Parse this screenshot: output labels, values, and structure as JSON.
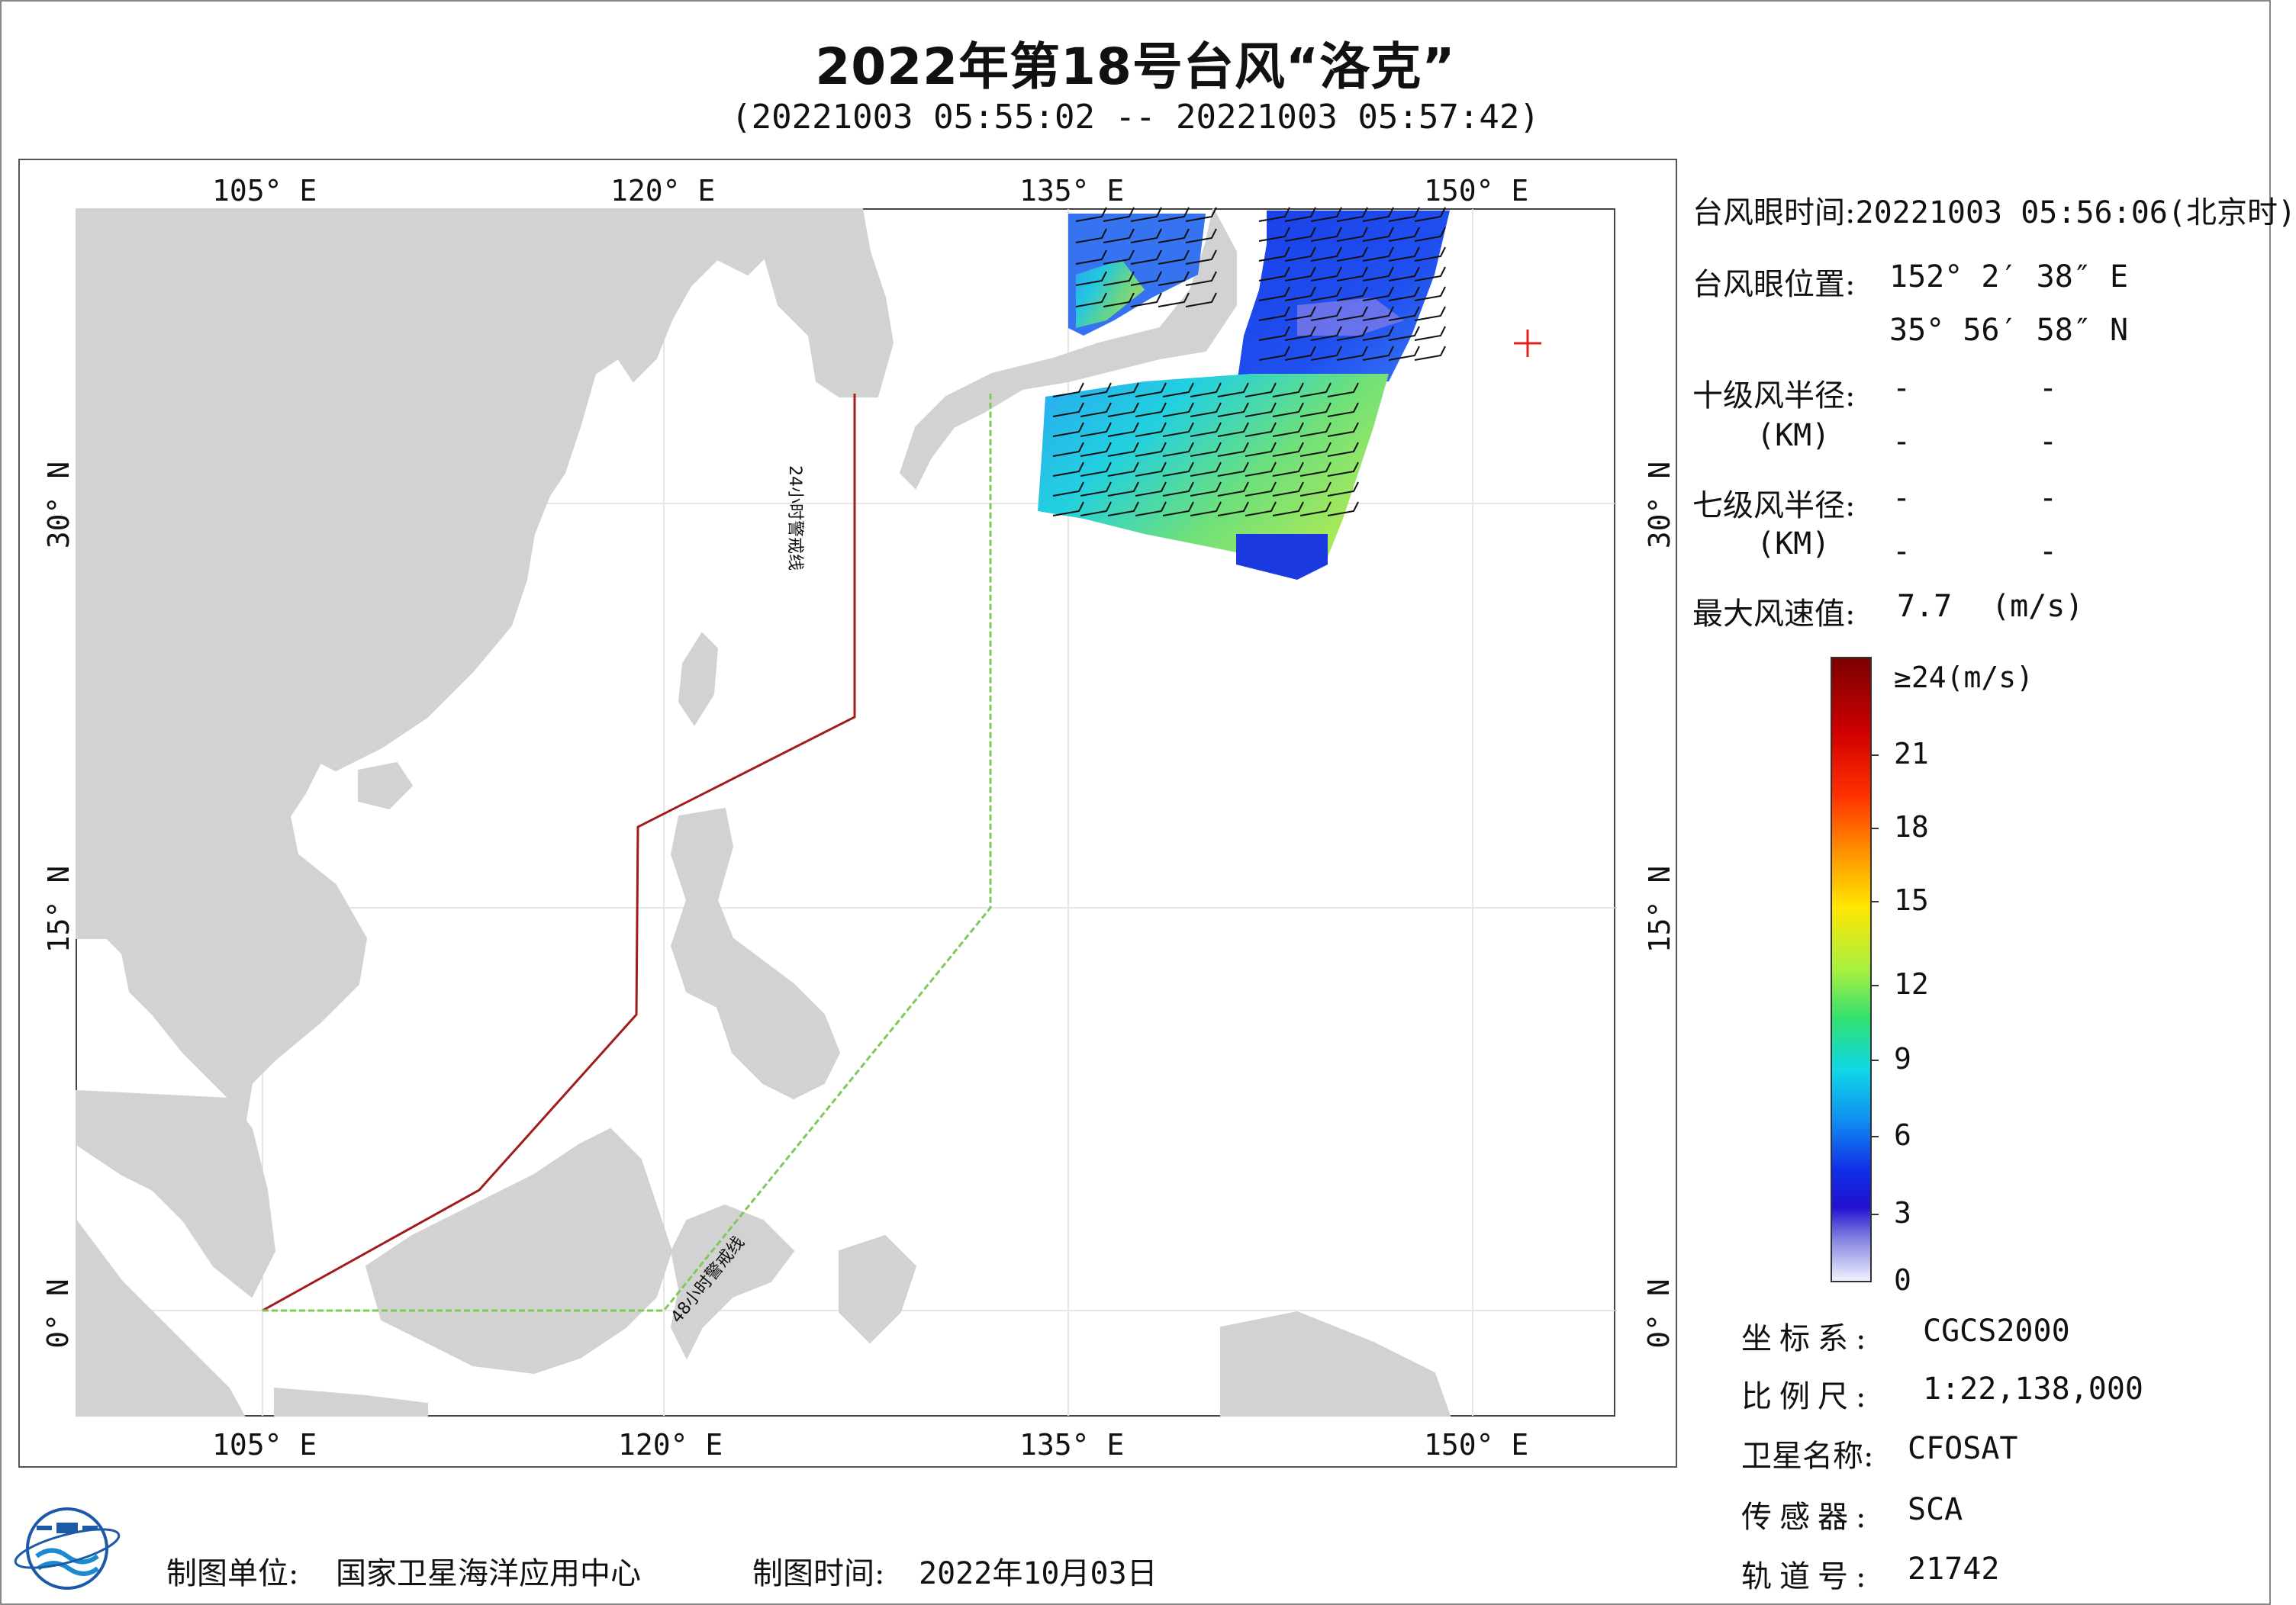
{
  "title": "2022年第18号台风“洛克”",
  "subtitle": "(20221003 05:55:02 -- 20221003 05:57:42)",
  "map": {
    "lon_ticks": [
      "105° E",
      "120° E",
      "135° E",
      "150° E"
    ],
    "lat_ticks": [
      "30° N",
      "15° N",
      "0° N"
    ],
    "line_24h_label": "24小时警戒线",
    "line_48h_label": "48小时警戒线",
    "colors": {
      "land": "#d2d2d2",
      "sea": "#ffffff",
      "line_24h": "#a11c1c",
      "line_48h": "#7ec95a",
      "eye_marker": "#e02020"
    }
  },
  "info": {
    "eye_time_label": "台风眼时间:",
    "eye_time_value": "20221003 05:56:06(北京时)",
    "eye_pos_label": "台风眼位置:",
    "eye_lon": "152° 2′ 38″ E",
    "eye_lat": "35° 56′ 58″ N",
    "r10_label": "十级风半径:",
    "r7_label": "七级风半径:",
    "km_label": "(KM)",
    "dash": "-",
    "max_wind_label": "最大风速值:",
    "max_wind_value": "7.7",
    "max_wind_unit": "(m/s)"
  },
  "colorbar": {
    "labels": [
      "≥24(m/s)",
      "21",
      "18",
      "15",
      "12",
      "9",
      "6",
      "3",
      "0"
    ],
    "values": [
      24,
      21,
      18,
      15,
      12,
      9,
      6,
      3,
      0
    ]
  },
  "meta": {
    "crs_label": "坐标系:",
    "crs_value": "CGCS2000",
    "scale_label": "比例尺:",
    "scale_value": "1:22,138,000",
    "sat_label": "卫星名称:",
    "sat_value": "CFOSAT",
    "sensor_label": "传感器:",
    "sensor_value": "SCA",
    "orbit_label": "轨道号:",
    "orbit_value": "21742"
  },
  "footer": {
    "org_label": "制图单位:",
    "org_value": "国家卫星海洋应用中心",
    "time_label": "制图时间:",
    "time_value": "2022年10月03日"
  }
}
